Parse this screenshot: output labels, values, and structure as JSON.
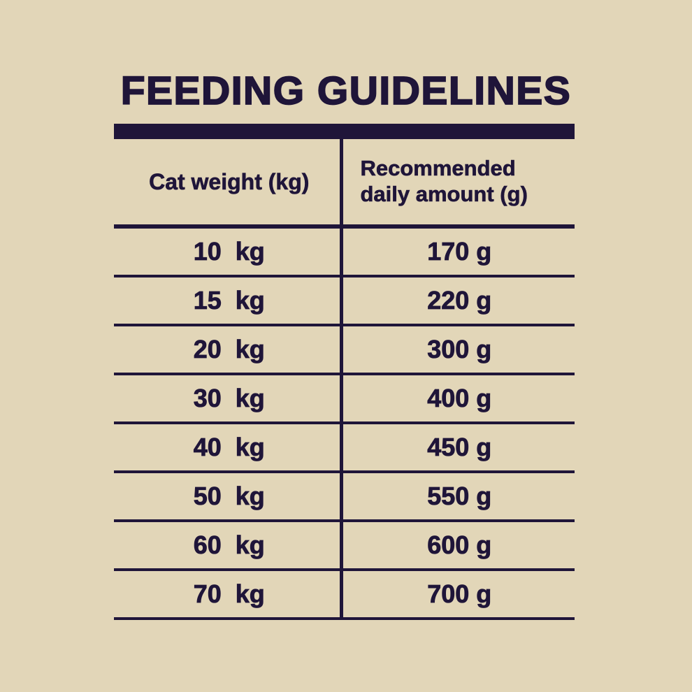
{
  "title": "FEEDING GUIDELINES",
  "colors": {
    "background": "#e2d6b8",
    "ink": "#1f1539"
  },
  "table": {
    "headers": [
      "Cat weight (kg)",
      "Recommended\ndaily amount (g)"
    ],
    "rows": [
      {
        "weight": "10  kg",
        "amount": "170 g"
      },
      {
        "weight": "15  kg",
        "amount": "220 g"
      },
      {
        "weight": "20  kg",
        "amount": "300 g"
      },
      {
        "weight": "30  kg",
        "amount": "400 g"
      },
      {
        "weight": "40  kg",
        "amount": "450 g"
      },
      {
        "weight": "50  kg",
        "amount": "550 g"
      },
      {
        "weight": "60  kg",
        "amount": "600 g"
      },
      {
        "weight": "70  kg",
        "amount": "700 g"
      }
    ]
  },
  "chart_data": {
    "type": "table",
    "title": "FEEDING GUIDELINES",
    "columns": [
      "Cat weight (kg)",
      "Recommended daily amount (g)"
    ],
    "weights_kg": [
      10,
      15,
      20,
      30,
      40,
      50,
      60,
      70
    ],
    "amounts_g": [
      170,
      220,
      300,
      400,
      450,
      550,
      600,
      700
    ],
    "rows": [
      [
        "10 kg",
        "170 g"
      ],
      [
        "15 kg",
        "220 g"
      ],
      [
        "20 kg",
        "300 g"
      ],
      [
        "30 kg",
        "400 g"
      ],
      [
        "40 kg",
        "450 g"
      ],
      [
        "50 kg",
        "550 g"
      ],
      [
        "60 kg",
        "600 g"
      ],
      [
        "70 kg",
        "700 g"
      ]
    ]
  }
}
